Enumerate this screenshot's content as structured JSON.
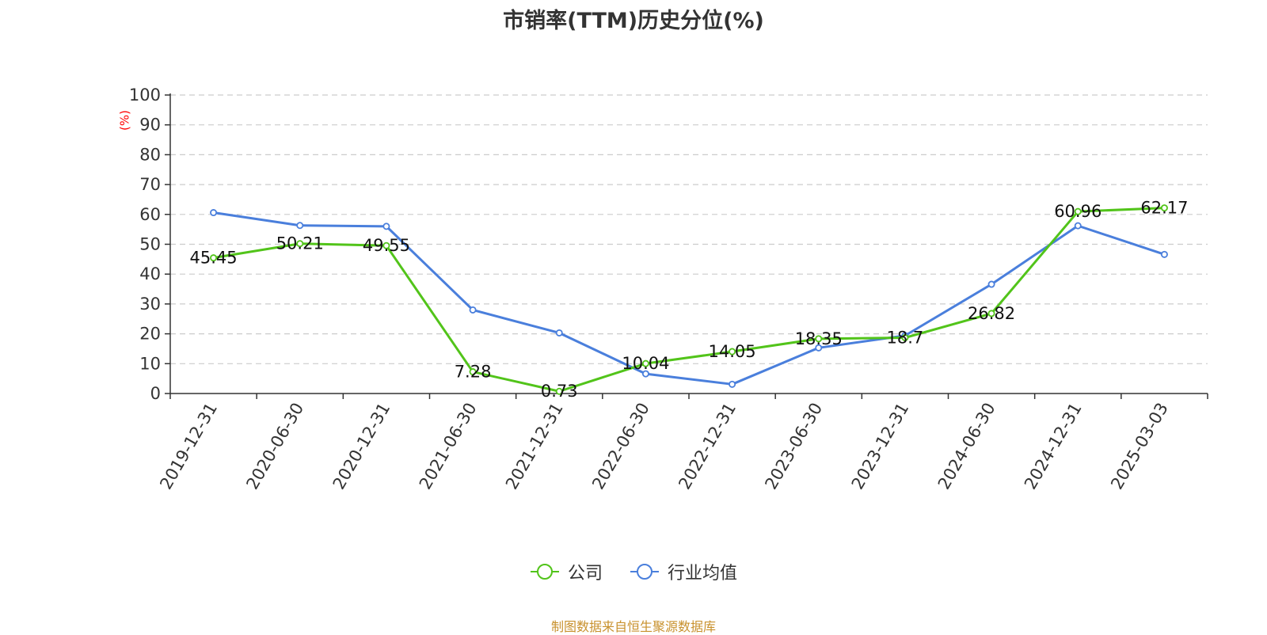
{
  "chart_data": {
    "type": "line",
    "title": "市销率(TTM)历史分位(%)",
    "ylabel": "(%)",
    "xlabel": "",
    "categories": [
      "2019-12-31",
      "2020-06-30",
      "2020-12-31",
      "2021-06-30",
      "2021-12-31",
      "2022-06-30",
      "2022-12-31",
      "2023-06-30",
      "2023-12-31",
      "2024-06-30",
      "2024-12-31",
      "2025-03-03"
    ],
    "ylim": [
      0,
      100
    ],
    "yticks": [
      0,
      10,
      20,
      30,
      40,
      50,
      60,
      70,
      80,
      90,
      100
    ],
    "grid": true,
    "legend_position": "bottom",
    "series": [
      {
        "name": "公司",
        "color": "#52c41a",
        "values": [
          45.45,
          50.21,
          49.55,
          7.28,
          0.73,
          10.04,
          14.05,
          18.35,
          18.7,
          26.82,
          60.96,
          62.17
        ],
        "labels": [
          "45.45",
          "50.21",
          "49.55",
          "7.28",
          "0.73",
          "10.04",
          "14.05",
          "18.35",
          "18.7",
          "26.82",
          "60.96",
          "62.17"
        ],
        "show_labels": true
      },
      {
        "name": "行业均值",
        "color": "#4a7fdc",
        "values": [
          60.6,
          56.3,
          56.0,
          28.0,
          20.3,
          6.6,
          3.1,
          15.3,
          19.4,
          36.6,
          56.2,
          46.6
        ],
        "show_labels": false
      }
    ]
  },
  "source": "制图数据来自恒生聚源数据库",
  "colors": {
    "axis": "#333333",
    "grid": "#cccccc",
    "ylabel": "#ff0000",
    "source": "#c8912d"
  }
}
